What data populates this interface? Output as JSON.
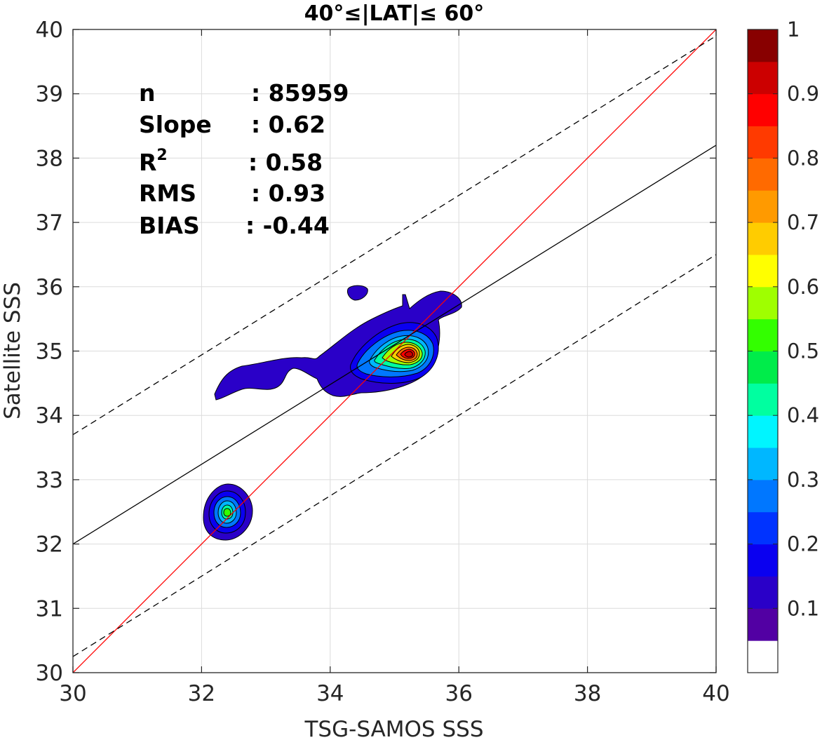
{
  "chart_data": {
    "type": "contour",
    "title": "40°≤|LAT|≤ 60°",
    "xlabel": "TSG-SAMOS SSS",
    "ylabel": "Satellite SSS",
    "xlim": [
      30,
      40
    ],
    "ylim": [
      30,
      40
    ],
    "xticks": [
      "30",
      "32",
      "34",
      "36",
      "38",
      "40"
    ],
    "yticks": [
      "30",
      "31",
      "32",
      "33",
      "34",
      "35",
      "36",
      "37",
      "38",
      "39",
      "40"
    ],
    "grid": true,
    "stats": [
      {
        "label": "n",
        "value": ": 85959"
      },
      {
        "label": "Slope",
        "value": ": 0.62"
      },
      {
        "label": "R",
        "sup": "2",
        "value": ": 0.58"
      },
      {
        "label": "RMS",
        "value": ": 0.93"
      },
      {
        "label": "BIAS",
        "value": ": -0.44"
      }
    ],
    "lines": [
      {
        "name": "one-to-one",
        "color": "#ff0000",
        "style": "solid",
        "x": [
          30,
          40
        ],
        "y": [
          30,
          40
        ]
      },
      {
        "name": "regression",
        "color": "#000000",
        "style": "solid",
        "x": [
          30,
          40
        ],
        "y": [
          32.0,
          38.2
        ]
      },
      {
        "name": "upper-bound",
        "color": "#000000",
        "style": "dashed",
        "x": [
          30,
          40
        ],
        "y": [
          33.7,
          39.9
        ]
      },
      {
        "name": "lower-bound",
        "color": "#000000",
        "style": "dashed",
        "x": [
          30,
          40
        ],
        "y": [
          30.25,
          36.5
        ]
      }
    ],
    "density_peaks": [
      {
        "x": 35.2,
        "y": 34.97,
        "max_level": 0.95
      },
      {
        "x": 32.4,
        "y": 32.5,
        "max_level": 0.45
      }
    ],
    "colorbar": {
      "ticks": [
        "0.1",
        "0.2",
        "0.3",
        "0.4",
        "0.5",
        "0.6",
        "0.7",
        "0.8",
        "0.9",
        "1"
      ],
      "range": [
        0,
        1
      ],
      "colors": [
        "#ffffff",
        "#5200a3",
        "#2a00c8",
        "#0a00f0",
        "#0033ff",
        "#0077ff",
        "#00b7ff",
        "#00f5ff",
        "#00ffa0",
        "#00ec4a",
        "#33ff00",
        "#9fff00",
        "#ffff00",
        "#ffcc00",
        "#ff9a00",
        "#ff6a00",
        "#ff3a00",
        "#ff0000",
        "#cc0000",
        "#880000"
      ]
    }
  }
}
